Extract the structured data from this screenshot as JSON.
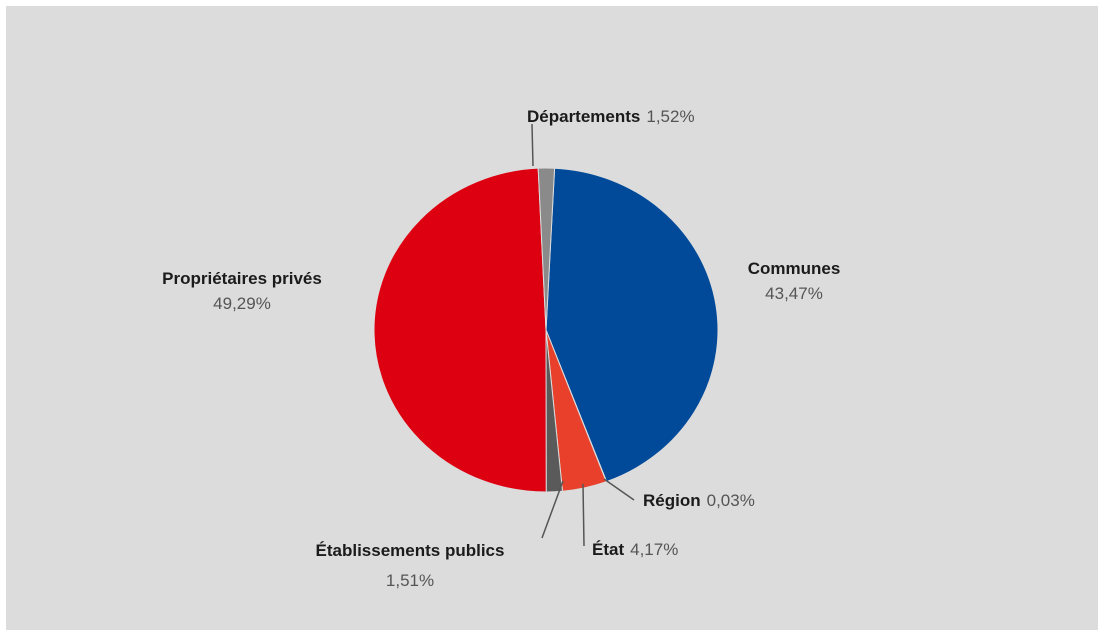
{
  "chart_data": {
    "type": "pie",
    "title": "",
    "unit": "%",
    "slices": [
      {
        "label": "Communes",
        "value": 43.47,
        "value_text": "43,47%",
        "color": "#004a99"
      },
      {
        "label": "Région",
        "value": 0.03,
        "value_text": "0,03%",
        "color": "#3a3a3a"
      },
      {
        "label": "État",
        "value": 4.17,
        "value_text": "4,17%",
        "color": "#e8402a"
      },
      {
        "label": "Établissements publics",
        "value": 1.51,
        "value_text": "1,51%",
        "color": "#5a5a5a"
      },
      {
        "label": "Propriétaires privés",
        "value": 49.29,
        "value_text": "49,29%",
        "color": "#dd0010"
      },
      {
        "label": "Départements",
        "value": 1.52,
        "value_text": "1,52%",
        "color": "#8a8a8a"
      }
    ]
  }
}
